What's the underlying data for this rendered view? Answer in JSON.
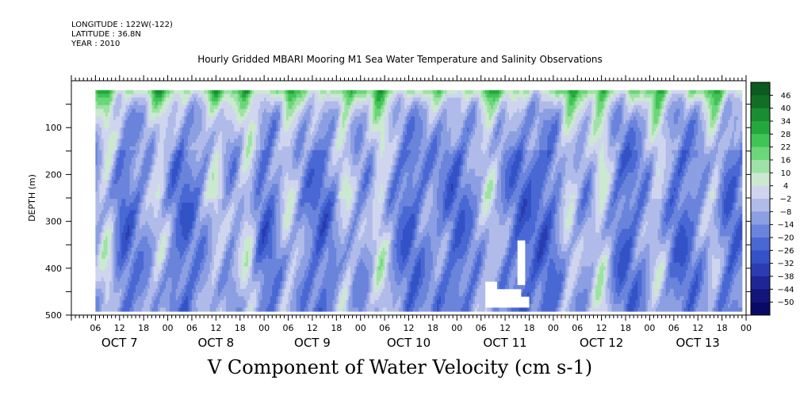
{
  "header": {
    "lines": [
      "LONGITUDE : 122W(-122)",
      "LATITUDE : 36.8N",
      "YEAR : 2010"
    ],
    "title": "Hourly Gridded MBARI Mooring M1 Sea Water Temperature and Salinity Observations",
    "footer": "V Component of Water Velocity (cm s-1)"
  },
  "chart_data": {
    "type": "heatmap",
    "title": "Hourly Gridded MBARI Mooring M1 Sea Water Temperature and Salinity Observations",
    "subtitle": "V Component of Water Velocity (cm s-1)",
    "ylabel": "DEPTH (m)",
    "y_axis_reversed": true,
    "ylim": [
      500,
      0
    ],
    "y_ticks": [
      100,
      200,
      300,
      400,
      500
    ],
    "x_tick_labels": [
      "06",
      "12",
      "18",
      "00",
      "06",
      "12",
      "18",
      "00",
      "06",
      "12",
      "18",
      "00",
      "06",
      "12",
      "18",
      "00",
      "06",
      "12",
      "18",
      "00",
      "06",
      "12",
      "18",
      "00",
      "06",
      "12",
      "18",
      "00"
    ],
    "x_tick_hours": [
      6,
      12,
      18,
      24,
      30,
      36,
      42,
      48,
      54,
      60,
      66,
      72,
      78,
      84,
      90,
      96,
      102,
      108,
      114,
      120,
      126,
      132,
      138,
      144,
      150,
      156,
      162,
      168
    ],
    "day_labels": [
      "OCT  7",
      "OCT  8",
      "OCT  9",
      "OCT 10",
      "OCT 11",
      "OCT 12",
      "OCT 13"
    ],
    "day_label_hours": [
      12,
      36,
      60,
      84,
      108,
      132,
      156
    ],
    "data_range_hours": [
      6,
      167
    ],
    "data_range_depth": [
      20,
      485
    ],
    "colorbar": {
      "levels": [
        -50,
        -44,
        -38,
        -32,
        -26,
        -20,
        -14,
        -8,
        -2,
        4,
        10,
        16,
        22,
        28,
        34,
        40,
        46
      ],
      "label_levels": [
        46,
        40,
        34,
        28,
        22,
        16,
        10,
        4,
        -2,
        -8,
        -14,
        -20,
        -26,
        -32,
        -38,
        -44,
        -50
      ],
      "colors": [
        "#0a0a66",
        "#14147a",
        "#1e2696",
        "#2a3cb0",
        "#3352c6",
        "#4a68d4",
        "#6a84dc",
        "#8c9fe2",
        "#b0bbe9",
        "#cfd5ee",
        "#cbe9cf",
        "#9ee2a6",
        "#6cd67a",
        "#40c456",
        "#24a83e",
        "#1a8c32",
        "#116e26",
        "#0b5a1e"
      ]
    },
    "missing_regions": [
      {
        "hour_start": 111,
        "hour_end": 113,
        "depth_start": 340,
        "depth_end": 440
      },
      {
        "hour_start": 103,
        "hour_end": 106,
        "depth_start": 425,
        "depth_end": 485
      },
      {
        "hour_start": 106,
        "hour_end": 112,
        "depth_start": 445,
        "depth_end": 485
      },
      {
        "hour_start": 112,
        "hour_end": 114,
        "depth_start": 460,
        "depth_end": 485
      }
    ],
    "green_bands_hours": [
      9,
      22,
      36,
      44,
      54,
      68,
      77,
      104,
      124,
      132,
      146,
      160
    ],
    "blue_bands_hours": [
      13,
      28,
      48,
      62,
      84,
      96,
      112,
      118,
      138,
      152,
      164
    ],
    "grid": false,
    "legend": "right colorbar"
  }
}
